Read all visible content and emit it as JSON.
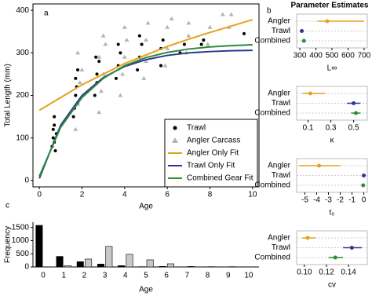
{
  "chart_data": [
    {
      "type": "scatter",
      "panel_label": "a",
      "x_label": "Age",
      "y_label": "Total Length (mm)",
      "xlim": [
        -0.3,
        10.3
      ],
      "ylim": [
        -15,
        415
      ],
      "xticks": [
        0,
        2,
        4,
        6,
        8,
        10
      ],
      "yticks": [
        0,
        100,
        200,
        300,
        400
      ],
      "legend": "lower right",
      "series": [
        {
          "name": "Trawl",
          "color": "#000000",
          "marker": "circle",
          "x": [
            0.6,
            0.65,
            0.7,
            0.7,
            0.75,
            0.8,
            0.65,
            0.7,
            1.6,
            1.7,
            1.7,
            1.8,
            1.75,
            1.65,
            1.8,
            2.6,
            2.7,
            2.8,
            2.7,
            2.65,
            3.6,
            3.7,
            3.8,
            3.7,
            4.6,
            4.7,
            4.8,
            4.7,
            5.7,
            5.7,
            5.8,
            6.6,
            6.8,
            7.7,
            7.6,
            9.6
          ],
          "values": [
            80,
            100,
            130,
            150,
            70,
            110,
            120,
            90,
            150,
            200,
            240,
            180,
            220,
            170,
            260,
            200,
            250,
            280,
            230,
            290,
            240,
            270,
            300,
            320,
            260,
            290,
            320,
            340,
            270,
            310,
            330,
            300,
            320,
            330,
            320,
            345
          ]
        },
        {
          "name": "Angler Carcass",
          "color": "#b4b4b4",
          "marker": "triangle",
          "x": [
            1.7,
            1.8,
            1.9,
            2,
            1.8,
            2.8,
            2.9,
            3,
            2.8,
            3.1,
            3,
            3.8,
            3.9,
            4,
            4.1,
            4,
            4.9,
            5,
            5,
            5.1,
            5.9,
            6,
            6,
            6.2,
            6.9,
            7,
            7,
            7.9,
            8,
            8.9,
            9,
            8.6
          ],
          "values": [
            120,
            180,
            230,
            260,
            300,
            160,
            210,
            250,
            290,
            320,
            340,
            200,
            250,
            290,
            330,
            360,
            240,
            280,
            330,
            370,
            270,
            310,
            360,
            380,
            300,
            340,
            370,
            320,
            360,
            360,
            390,
            390
          ]
        },
        {
          "name": "Angler Only Fit",
          "color": "#e6a11c",
          "style": "line",
          "x": [
            0,
            1,
            2,
            3,
            4,
            5,
            6,
            7,
            8,
            9,
            10
          ],
          "values": [
            165,
            195,
            225,
            250,
            275,
            295,
            315,
            332,
            348,
            363,
            378
          ]
        },
        {
          "name": "Trawl Only Fit",
          "color": "#2b3990",
          "style": "line",
          "x": [
            0,
            1,
            2,
            3,
            4,
            5,
            6,
            7,
            8,
            9,
            10
          ],
          "values": [
            5,
            130,
            200,
            242,
            268,
            284,
            294,
            300,
            303,
            305,
            306
          ]
        },
        {
          "name": "Combined Gear Fit",
          "color": "#2e8b3a",
          "style": "line",
          "x": [
            0,
            1,
            2,
            3,
            4,
            5,
            6,
            7,
            8,
            9,
            10
          ],
          "values": [
            10,
            125,
            195,
            240,
            270,
            289,
            301,
            309,
            314,
            317,
            319
          ]
        }
      ]
    },
    {
      "type": "bar",
      "panel_label": "c",
      "x_label": "Age",
      "y_label": "Frequency",
      "categories": [
        "0",
        "1",
        "2",
        "3",
        "4",
        "5",
        "6",
        "7",
        "8",
        "9",
        "10"
      ],
      "ylim": [
        0,
        1700
      ],
      "yticks": [
        0,
        500,
        1000,
        1500
      ],
      "series": [
        {
          "color": "#000000",
          "values": [
            1580,
            400,
            200,
            110,
            50,
            10,
            20,
            5,
            5,
            5,
            5
          ]
        },
        {
          "color": "#c8c8c8",
          "values": [
            0,
            50,
            300,
            780,
            480,
            270,
            120,
            20,
            10,
            10,
            5
          ]
        }
      ]
    },
    {
      "type": "dot-interval",
      "panel_label": "b",
      "title": "Parameter Estimates",
      "x_label": "L∞",
      "categories": [
        "Angler",
        "Trawl",
        "Combined"
      ],
      "colors": [
        "#e6a11c",
        "#2b3990",
        "#2e8b3a"
      ],
      "values": [
        470,
        312,
        325
      ],
      "lower": [
        410,
        300,
        318
      ],
      "upper": [
        700,
        320,
        332
      ],
      "xlim": [
        280,
        720
      ],
      "xticks": [
        300,
        400,
        500,
        600,
        700
      ]
    },
    {
      "type": "dot-interval",
      "x_label": "κ",
      "categories": [
        "Angler",
        "Trawl",
        "Combined"
      ],
      "colors": [
        "#e6a11c",
        "#2b3990",
        "#2e8b3a"
      ],
      "values": [
        0.12,
        0.5,
        0.52
      ],
      "lower": [
        0.05,
        0.44,
        0.48
      ],
      "upper": [
        0.25,
        0.56,
        0.56
      ],
      "xlim": [
        0,
        0.62
      ],
      "xticks": [
        0.1,
        0.3,
        0.5
      ]
    },
    {
      "type": "dot-interval",
      "x_label": "t₀",
      "categories": [
        "Angler",
        "Trawl",
        "Combined"
      ],
      "colors": [
        "#e6a11c",
        "#2b3990",
        "#2e8b3a"
      ],
      "values": [
        -3.8,
        0,
        -0.05
      ],
      "lower": [
        -5.5,
        -0.05,
        -0.1
      ],
      "upper": [
        -2,
        0.05,
        0
      ],
      "xlim": [
        -5.7,
        0.3
      ],
      "xticks": [
        -5,
        -4,
        -3,
        -2,
        -1,
        0
      ]
    },
    {
      "type": "dot-interval",
      "x_label": "cv",
      "categories": [
        "Angler",
        "Trawl",
        "Combined"
      ],
      "colors": [
        "#e6a11c",
        "#2b3990",
        "#2e8b3a"
      ],
      "values": [
        0.103,
        0.143,
        0.128
      ],
      "lower": [
        0.098,
        0.135,
        0.122
      ],
      "upper": [
        0.11,
        0.152,
        0.135
      ],
      "xlim": [
        0.093,
        0.157
      ],
      "xticks": [
        {
          "value": 0.1,
          "label": "0.10"
        },
        0.12,
        0.14
      ]
    }
  ]
}
